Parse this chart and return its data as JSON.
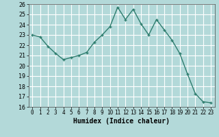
{
  "x": [
    0,
    1,
    2,
    3,
    4,
    5,
    6,
    7,
    8,
    9,
    10,
    11,
    12,
    13,
    14,
    15,
    16,
    17,
    18,
    19,
    20,
    21,
    22,
    23
  ],
  "y": [
    23.0,
    22.8,
    21.9,
    21.2,
    20.6,
    20.8,
    21.0,
    21.3,
    22.3,
    23.0,
    23.8,
    25.7,
    24.5,
    25.5,
    24.1,
    23.0,
    24.5,
    23.5,
    22.5,
    21.2,
    19.2,
    17.3,
    16.5,
    16.4
  ],
  "xlabel": "Humidex (Indice chaleur)",
  "xlim": [
    -0.5,
    23.5
  ],
  "ylim": [
    16,
    26
  ],
  "yticks": [
    16,
    17,
    18,
    19,
    20,
    21,
    22,
    23,
    24,
    25,
    26
  ],
  "xticks": [
    0,
    1,
    2,
    3,
    4,
    5,
    6,
    7,
    8,
    9,
    10,
    11,
    12,
    13,
    14,
    15,
    16,
    17,
    18,
    19,
    20,
    21,
    22,
    23
  ],
  "line_color": "#2e7d6e",
  "bg_color": "#b3d9d9",
  "grid_color": "#ffffff",
  "marker": "+"
}
